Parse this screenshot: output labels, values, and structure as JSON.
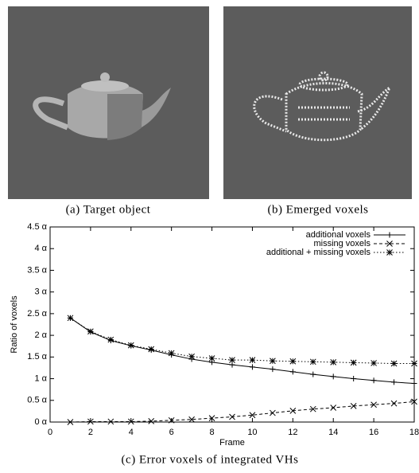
{
  "panels": [
    {
      "caption": "(a) Target object"
    },
    {
      "caption": "(b) Emerged voxels"
    }
  ],
  "chart_data": {
    "type": "line",
    "caption": "(c) Error voxels of integrated VHs",
    "x_label": "Frame",
    "y_label": "Ratio of voxels",
    "x": [
      1,
      2,
      3,
      4,
      5,
      6,
      7,
      8,
      9,
      10,
      11,
      12,
      13,
      14,
      15,
      16,
      17,
      18
    ],
    "series": [
      {
        "name": "additional voxels",
        "color": "#000000",
        "marker": "+",
        "dash": "solid",
        "values": [
          2.4,
          2.08,
          1.88,
          1.76,
          1.66,
          1.55,
          1.45,
          1.38,
          1.32,
          1.27,
          1.22,
          1.16,
          1.1,
          1.05,
          1.0,
          0.96,
          0.92,
          0.89
        ]
      },
      {
        "name": "missing voxels",
        "color": "#000000",
        "marker": "x",
        "dash": "dashed",
        "values": [
          0,
          0.01,
          0.01,
          0.01,
          0.02,
          0.04,
          0.06,
          0.09,
          0.12,
          0.16,
          0.21,
          0.26,
          0.3,
          0.33,
          0.37,
          0.4,
          0.43,
          0.47
        ]
      },
      {
        "name": "additional + missing voxels",
        "color": "#000000",
        "marker": "*",
        "dash": "dotted",
        "values": [
          2.4,
          2.09,
          1.9,
          1.77,
          1.68,
          1.59,
          1.51,
          1.47,
          1.43,
          1.43,
          1.41,
          1.4,
          1.39,
          1.38,
          1.37,
          1.36,
          1.35,
          1.35
        ]
      }
    ],
    "xlim": [
      0,
      18
    ],
    "xticks": [
      0,
      2,
      4,
      6,
      8,
      10,
      12,
      14,
      16,
      18
    ],
    "ylim": [
      0,
      4.5
    ],
    "yticks": [
      {
        "value": 0,
        "label": "0 α"
      },
      {
        "value": 0.5,
        "label": "0.5 α"
      },
      {
        "value": 1,
        "label": "1 α"
      },
      {
        "value": 1.5,
        "label": "1.5 α"
      },
      {
        "value": 2,
        "label": "2 α"
      },
      {
        "value": 2.5,
        "label": "2.5 α"
      },
      {
        "value": 3,
        "label": "3 α"
      },
      {
        "value": 3.5,
        "label": "3.5 α"
      },
      {
        "value": 4,
        "label": "4 α"
      },
      {
        "value": 4.5,
        "label": "4.5 α"
      }
    ],
    "legend": "top-right"
  }
}
